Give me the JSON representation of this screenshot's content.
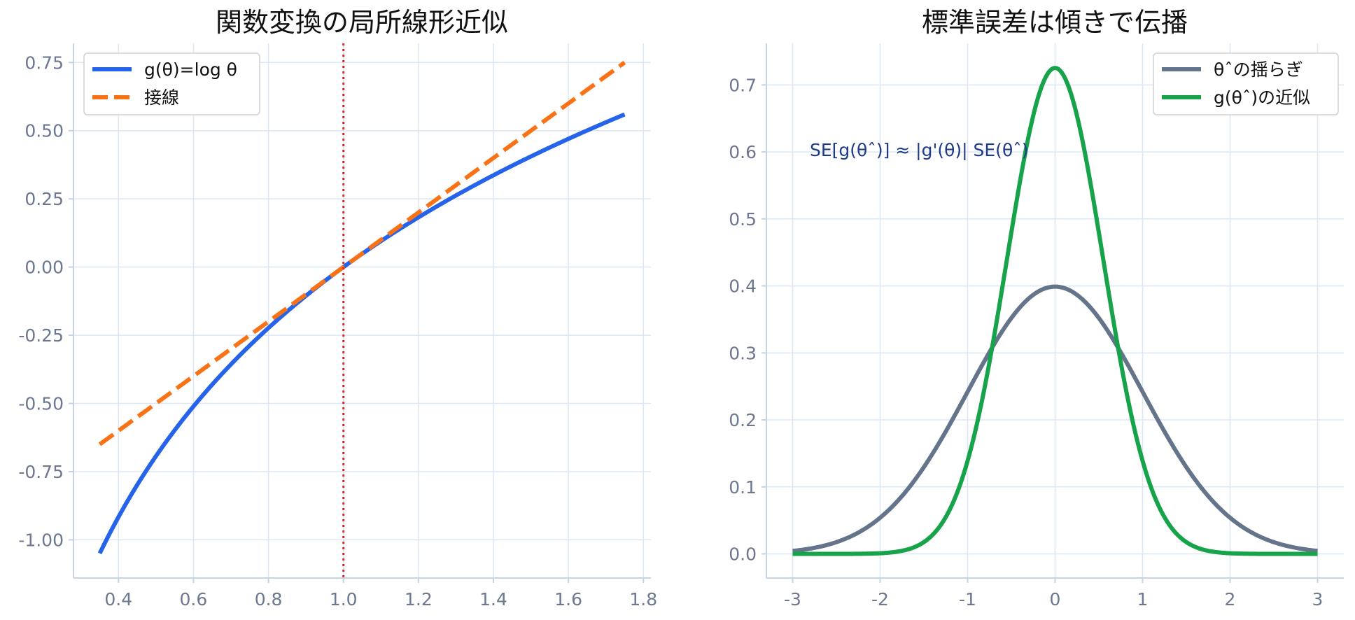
{
  "chart_data": [
    {
      "type": "line",
      "title": "関数変換の局所線形近似",
      "xlim": [
        0.28,
        1.82
      ],
      "ylim": [
        -1.14,
        0.82
      ],
      "x_ticks": [
        "0.4",
        "0.6",
        "0.8",
        "1.0",
        "1.2",
        "1.4",
        "1.6",
        "1.8"
      ],
      "x_tick_values": [
        0.4,
        0.6,
        0.8,
        1.0,
        1.2,
        1.4,
        1.6,
        1.8
      ],
      "y_ticks": [
        "0.75",
        "0.50",
        "0.25",
        "0.00",
        "-0.25",
        "-0.50",
        "-0.75",
        "-1.00"
      ],
      "y_tick_values": [
        0.75,
        0.5,
        0.25,
        0.0,
        -0.25,
        -0.5,
        -0.75,
        -1.0
      ],
      "grid": true,
      "legend_position": "top-left",
      "x_range": [
        0.35,
        1.75
      ],
      "series": [
        {
          "name": "g(θ)=log θ",
          "function": "log",
          "color": "#2563eb",
          "style": "solid"
        },
        {
          "name": "接線",
          "function": "tangent at θ=1: θ-1",
          "color": "#f97316",
          "style": "dashed"
        }
      ],
      "vline": {
        "x": 1.0,
        "color": "#dc2626",
        "style": "dotted"
      }
    },
    {
      "type": "line",
      "title": "標準誤差は傾きで伝播",
      "xlim": [
        -3.3,
        3.3
      ],
      "ylim": [
        -0.036,
        0.762
      ],
      "x_ticks": [
        "-3",
        "-2",
        "-1",
        "0",
        "1",
        "2",
        "3"
      ],
      "x_tick_values": [
        -3,
        -2,
        -1,
        0,
        1,
        2,
        3
      ],
      "y_ticks": [
        "0.7",
        "0.6",
        "0.5",
        "0.4",
        "0.3",
        "0.2",
        "0.1",
        "0.0"
      ],
      "y_tick_values": [
        0.7,
        0.6,
        0.5,
        0.4,
        0.3,
        0.2,
        0.1,
        0.0
      ],
      "grid": true,
      "legend_position": "top-right",
      "x_range": [
        -3,
        3
      ],
      "series": [
        {
          "name": "θˆの揺らぎ",
          "function": "normal pdf",
          "sd": 1.0,
          "color": "#64748b",
          "style": "solid"
        },
        {
          "name": "g(θˆ)の近似",
          "function": "normal pdf",
          "sd": 0.55,
          "color": "#16a34a",
          "style": "solid"
        }
      ],
      "annotation": "SE[g(θˆ)] ≈ |g'(θ)| SE(θˆ)"
    }
  ]
}
